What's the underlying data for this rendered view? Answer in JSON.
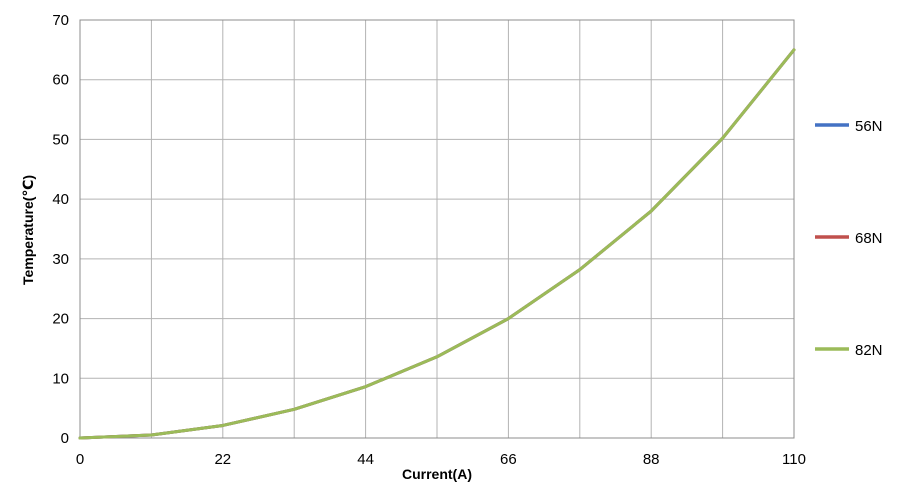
{
  "chart_data": {
    "type": "line",
    "title": "",
    "xlabel": "Current(A)",
    "ylabel": "Temperature(℃)",
    "xlim": [
      0,
      110
    ],
    "ylim": [
      0,
      70
    ],
    "x_ticks": [
      0,
      11,
      22,
      33,
      44,
      55,
      66,
      77,
      88,
      99,
      110
    ],
    "x_tick_labels": [
      "0",
      "",
      "22",
      "",
      "44",
      "",
      "66",
      "",
      "88",
      "",
      "110"
    ],
    "y_ticks": [
      0,
      10,
      20,
      30,
      40,
      50,
      60,
      70
    ],
    "y_tick_labels": [
      "0",
      "10",
      "20",
      "30",
      "40",
      "50",
      "60",
      "70"
    ],
    "grid": true,
    "legend_position": "right",
    "x": [
      0,
      11,
      22,
      33,
      44,
      55,
      66,
      77,
      88,
      99,
      110
    ],
    "series": [
      {
        "name": "56N",
        "color": "#4472C4",
        "values": [
          0,
          0.5,
          2.1,
          4.8,
          8.6,
          13.6,
          20.0,
          28.2,
          38.0,
          50.2,
          65.0
        ]
      },
      {
        "name": "68N",
        "color": "#C0504D",
        "values": [
          0,
          0.5,
          2.1,
          4.8,
          8.6,
          13.6,
          20.0,
          28.2,
          38.0,
          50.2,
          65.0
        ]
      },
      {
        "name": "82N",
        "color": "#9BBB59",
        "values": [
          0,
          0.5,
          2.1,
          4.8,
          8.6,
          13.6,
          20.0,
          28.2,
          38.0,
          50.2,
          65.0
        ]
      }
    ]
  }
}
